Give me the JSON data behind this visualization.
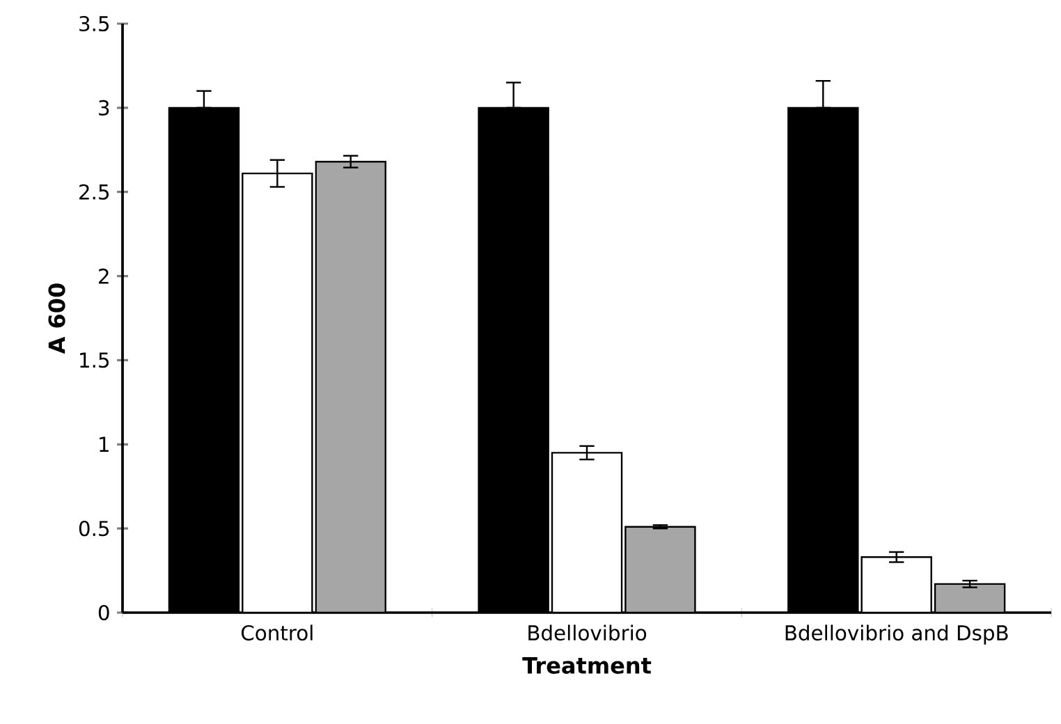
{
  "chart_data": {
    "type": "bar",
    "xlabel": "Treatment",
    "ylabel": "A 600",
    "categories": [
      "Control",
      "Bdellovibrio",
      "Bdellovibrio and DspB"
    ],
    "series": [
      {
        "color": "#000000",
        "values": [
          3.0,
          3.0,
          3.0
        ],
        "errors": [
          [
            3.0,
            3.1
          ],
          [
            3.0,
            3.15
          ],
          [
            3.0,
            3.16
          ]
        ]
      },
      {
        "color": "#ffffff",
        "values": [
          2.61,
          0.95,
          0.33
        ],
        "errors": [
          0.08,
          0.04,
          0.03
        ]
      },
      {
        "color": "#a6a6a6",
        "values": [
          2.68,
          0.51,
          0.17
        ],
        "errors": [
          0.035,
          0.01,
          0.02
        ]
      }
    ],
    "ylim": [
      0,
      3.5
    ],
    "yticks": [
      0,
      0.5,
      1,
      1.5,
      2,
      2.5,
      3,
      3.5
    ]
  }
}
